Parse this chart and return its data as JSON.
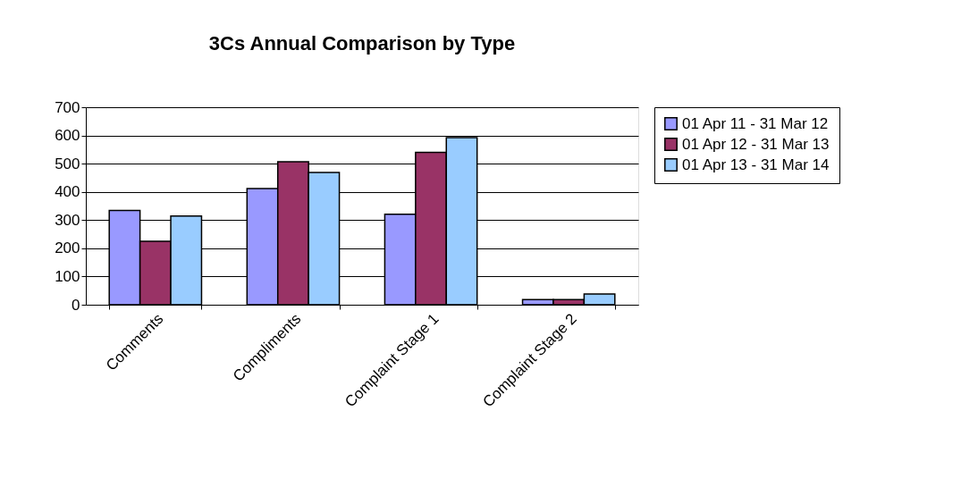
{
  "chart_data": {
    "type": "bar",
    "title": "3Cs Annual Comparison by Type",
    "categories": [
      "Comments",
      "Compliments",
      "Complaint Stage 1",
      "Complaint Stage 2"
    ],
    "series": [
      {
        "name": "01 Apr 11 - 31 Mar 12",
        "color": "#9999ff",
        "values": [
          334,
          412,
          321,
          18
        ]
      },
      {
        "name": "01 Apr 12 - 31 Mar 13",
        "color": "#993366",
        "values": [
          225,
          507,
          540,
          18
        ]
      },
      {
        "name": "01 Apr 13 - 31 Mar 14",
        "color": "#99ccff",
        "values": [
          314,
          469,
          592,
          38
        ]
      }
    ],
    "ylim": [
      0,
      700
    ],
    "yticks": [
      0,
      100,
      200,
      300,
      400,
      500,
      600,
      700
    ],
    "grid": "y",
    "legend": "right"
  }
}
